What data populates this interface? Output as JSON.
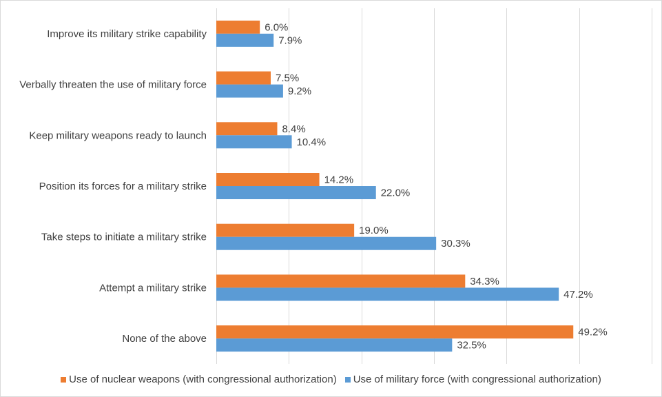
{
  "chart_data": {
    "type": "bar",
    "orientation": "horizontal",
    "categories": [
      "Improve its military strike capability",
      "Verbally threaten the use of military force",
      "Keep military weapons ready to launch",
      "Position its forces for a military strike",
      "Take steps to initiate a military strike",
      "Attempt a military strike",
      "None of the above"
    ],
    "series": [
      {
        "name": "Use of nuclear weapons (with congressional authorization)",
        "color": "#ed7d31",
        "values": [
          6.0,
          7.5,
          8.4,
          14.2,
          19.0,
          34.3,
          49.2
        ],
        "labels": [
          "6.0%",
          "7.5%",
          "8.4%",
          "14.2%",
          "19.0%",
          "34.3%",
          "49.2%"
        ]
      },
      {
        "name": "Use of military force (with congressional authorization)",
        "color": "#5b9bd5",
        "values": [
          7.9,
          9.2,
          10.4,
          22.0,
          30.3,
          47.2,
          32.5
        ],
        "labels": [
          "7.9%",
          "9.2%",
          "10.4%",
          "22.0%",
          "30.3%",
          "47.2%",
          "32.5%"
        ]
      }
    ],
    "title": "",
    "xlabel": "",
    "ylabel": "",
    "xlim": [
      0,
      60
    ],
    "grid": true,
    "legend_position": "bottom"
  }
}
